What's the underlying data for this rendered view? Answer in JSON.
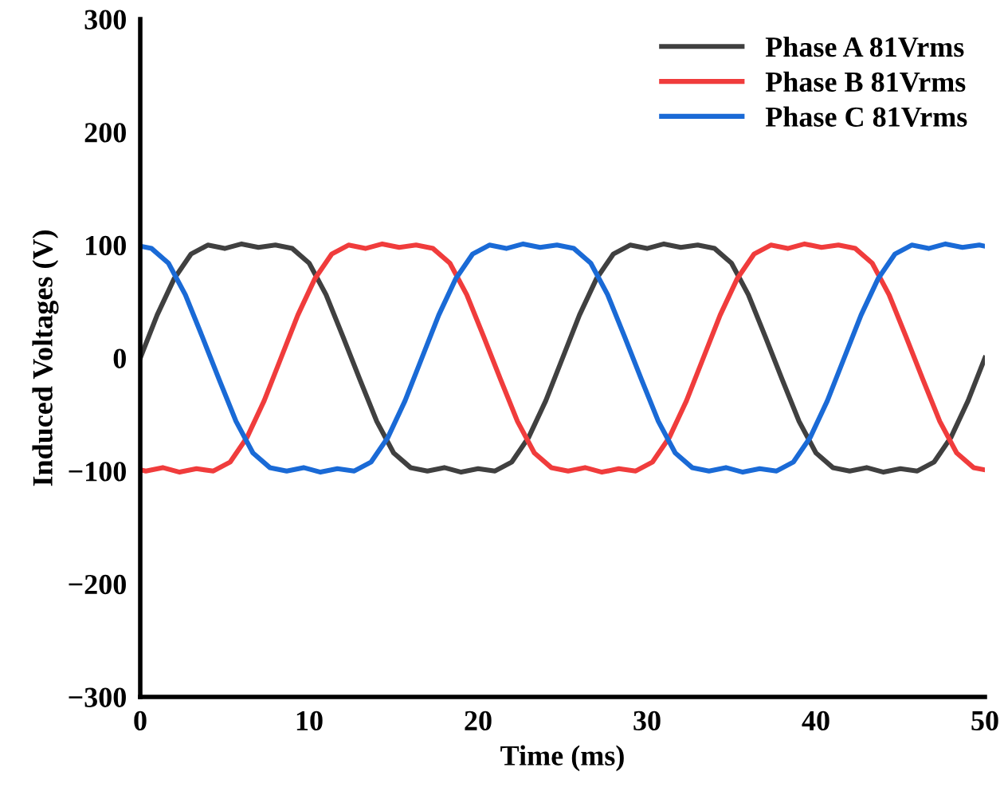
{
  "chart_data": {
    "type": "line",
    "xlabel": "Time (ms)",
    "ylabel": "Induced Voltages (V)",
    "xlim": [
      0,
      50
    ],
    "xticks": [
      0,
      10,
      20,
      30,
      40,
      50
    ],
    "ylim": [
      -300,
      300
    ],
    "yticks": [
      {
        "value": -300,
        "label": "−300"
      },
      {
        "value": -200,
        "label": "−200"
      },
      {
        "value": -100,
        "label": "−100"
      },
      0,
      100,
      200,
      300
    ],
    "grid": false,
    "legend": "top right",
    "marker": "none",
    "line_style": "solid",
    "series": [
      {
        "name": "Phase A 81Vrms",
        "color": "#404040",
        "x": [
          0,
          1,
          2,
          3,
          4,
          5,
          6,
          7,
          8,
          9,
          10,
          11,
          12,
          13,
          14,
          15,
          16,
          17,
          18,
          19,
          20,
          21,
          22,
          23,
          24,
          25,
          26,
          27,
          28,
          29,
          30,
          31,
          32,
          33,
          34,
          35,
          36,
          37,
          38,
          39,
          40,
          41,
          42,
          43,
          44,
          45,
          46,
          47,
          48,
          49,
          50
        ],
        "values": [
          0,
          38,
          70,
          92,
          100,
          97,
          101,
          98,
          100,
          97,
          84,
          56,
          19,
          -19,
          -56,
          -84,
          -97,
          -100,
          -97,
          -101,
          -98,
          -100,
          -92,
          -70,
          -38,
          0,
          38,
          70,
          92,
          100,
          97,
          101,
          98,
          100,
          97,
          84,
          56,
          19,
          -19,
          -56,
          -84,
          -97,
          -100,
          -97,
          -101,
          -98,
          -100,
          -92,
          -70,
          -38,
          0
        ]
      },
      {
        "name": "Phase B 81Vrms",
        "color": "#f03c3c",
        "x": [
          0,
          0.33,
          1.33,
          2.33,
          3.33,
          4.33,
          5.33,
          6.33,
          7.33,
          8.33,
          9.33,
          10.33,
          11.33,
          12.33,
          13.33,
          14.33,
          15.33,
          16.33,
          17.33,
          18.33,
          19.33,
          20.33,
          21.33,
          22.33,
          23.33,
          24.33,
          25.33,
          26.33,
          27.33,
          28.33,
          29.33,
          30.33,
          31.33,
          32.33,
          33.33,
          34.33,
          35.33,
          36.33,
          37.33,
          38.33,
          39.33,
          40.33,
          41.33,
          42.33,
          43.33,
          44.33,
          45.33,
          46.33,
          47.33,
          48.33,
          49.33,
          50
        ],
        "values": [
          -99,
          -100,
          -97,
          -101,
          -98,
          -100,
          -92,
          -70,
          -38,
          0,
          38,
          70,
          92,
          100,
          97,
          101,
          98,
          100,
          97,
          84,
          56,
          19,
          -19,
          -56,
          -84,
          -97,
          -100,
          -97,
          -101,
          -98,
          -100,
          -92,
          -70,
          -38,
          0,
          38,
          70,
          92,
          100,
          97,
          101,
          98,
          100,
          97,
          84,
          56,
          19,
          -19,
          -56,
          -84,
          -97,
          -99
        ]
      },
      {
        "name": "Phase C 81Vrms",
        "color": "#1a6ad6",
        "x": [
          0,
          0.67,
          1.67,
          2.67,
          3.67,
          4.67,
          5.67,
          6.67,
          7.67,
          8.67,
          9.67,
          10.67,
          11.67,
          12.67,
          13.67,
          14.67,
          15.67,
          16.67,
          17.67,
          18.67,
          19.67,
          20.67,
          21.67,
          22.67,
          23.67,
          24.67,
          25.67,
          26.67,
          27.67,
          28.67,
          29.67,
          30.67,
          31.67,
          32.67,
          33.67,
          34.67,
          35.67,
          36.67,
          37.67,
          38.67,
          39.67,
          40.67,
          41.67,
          42.67,
          43.67,
          44.67,
          45.67,
          46.67,
          47.67,
          48.67,
          49.67,
          50
        ],
        "values": [
          99,
          97,
          84,
          56,
          19,
          -19,
          -56,
          -84,
          -97,
          -100,
          -97,
          -101,
          -98,
          -100,
          -92,
          -70,
          -38,
          0,
          38,
          70,
          92,
          100,
          97,
          101,
          98,
          100,
          97,
          84,
          56,
          19,
          -19,
          -56,
          -84,
          -97,
          -100,
          -97,
          -101,
          -98,
          -100,
          -92,
          -70,
          -38,
          0,
          38,
          70,
          92,
          100,
          97,
          101,
          98,
          100,
          99
        ]
      }
    ]
  }
}
